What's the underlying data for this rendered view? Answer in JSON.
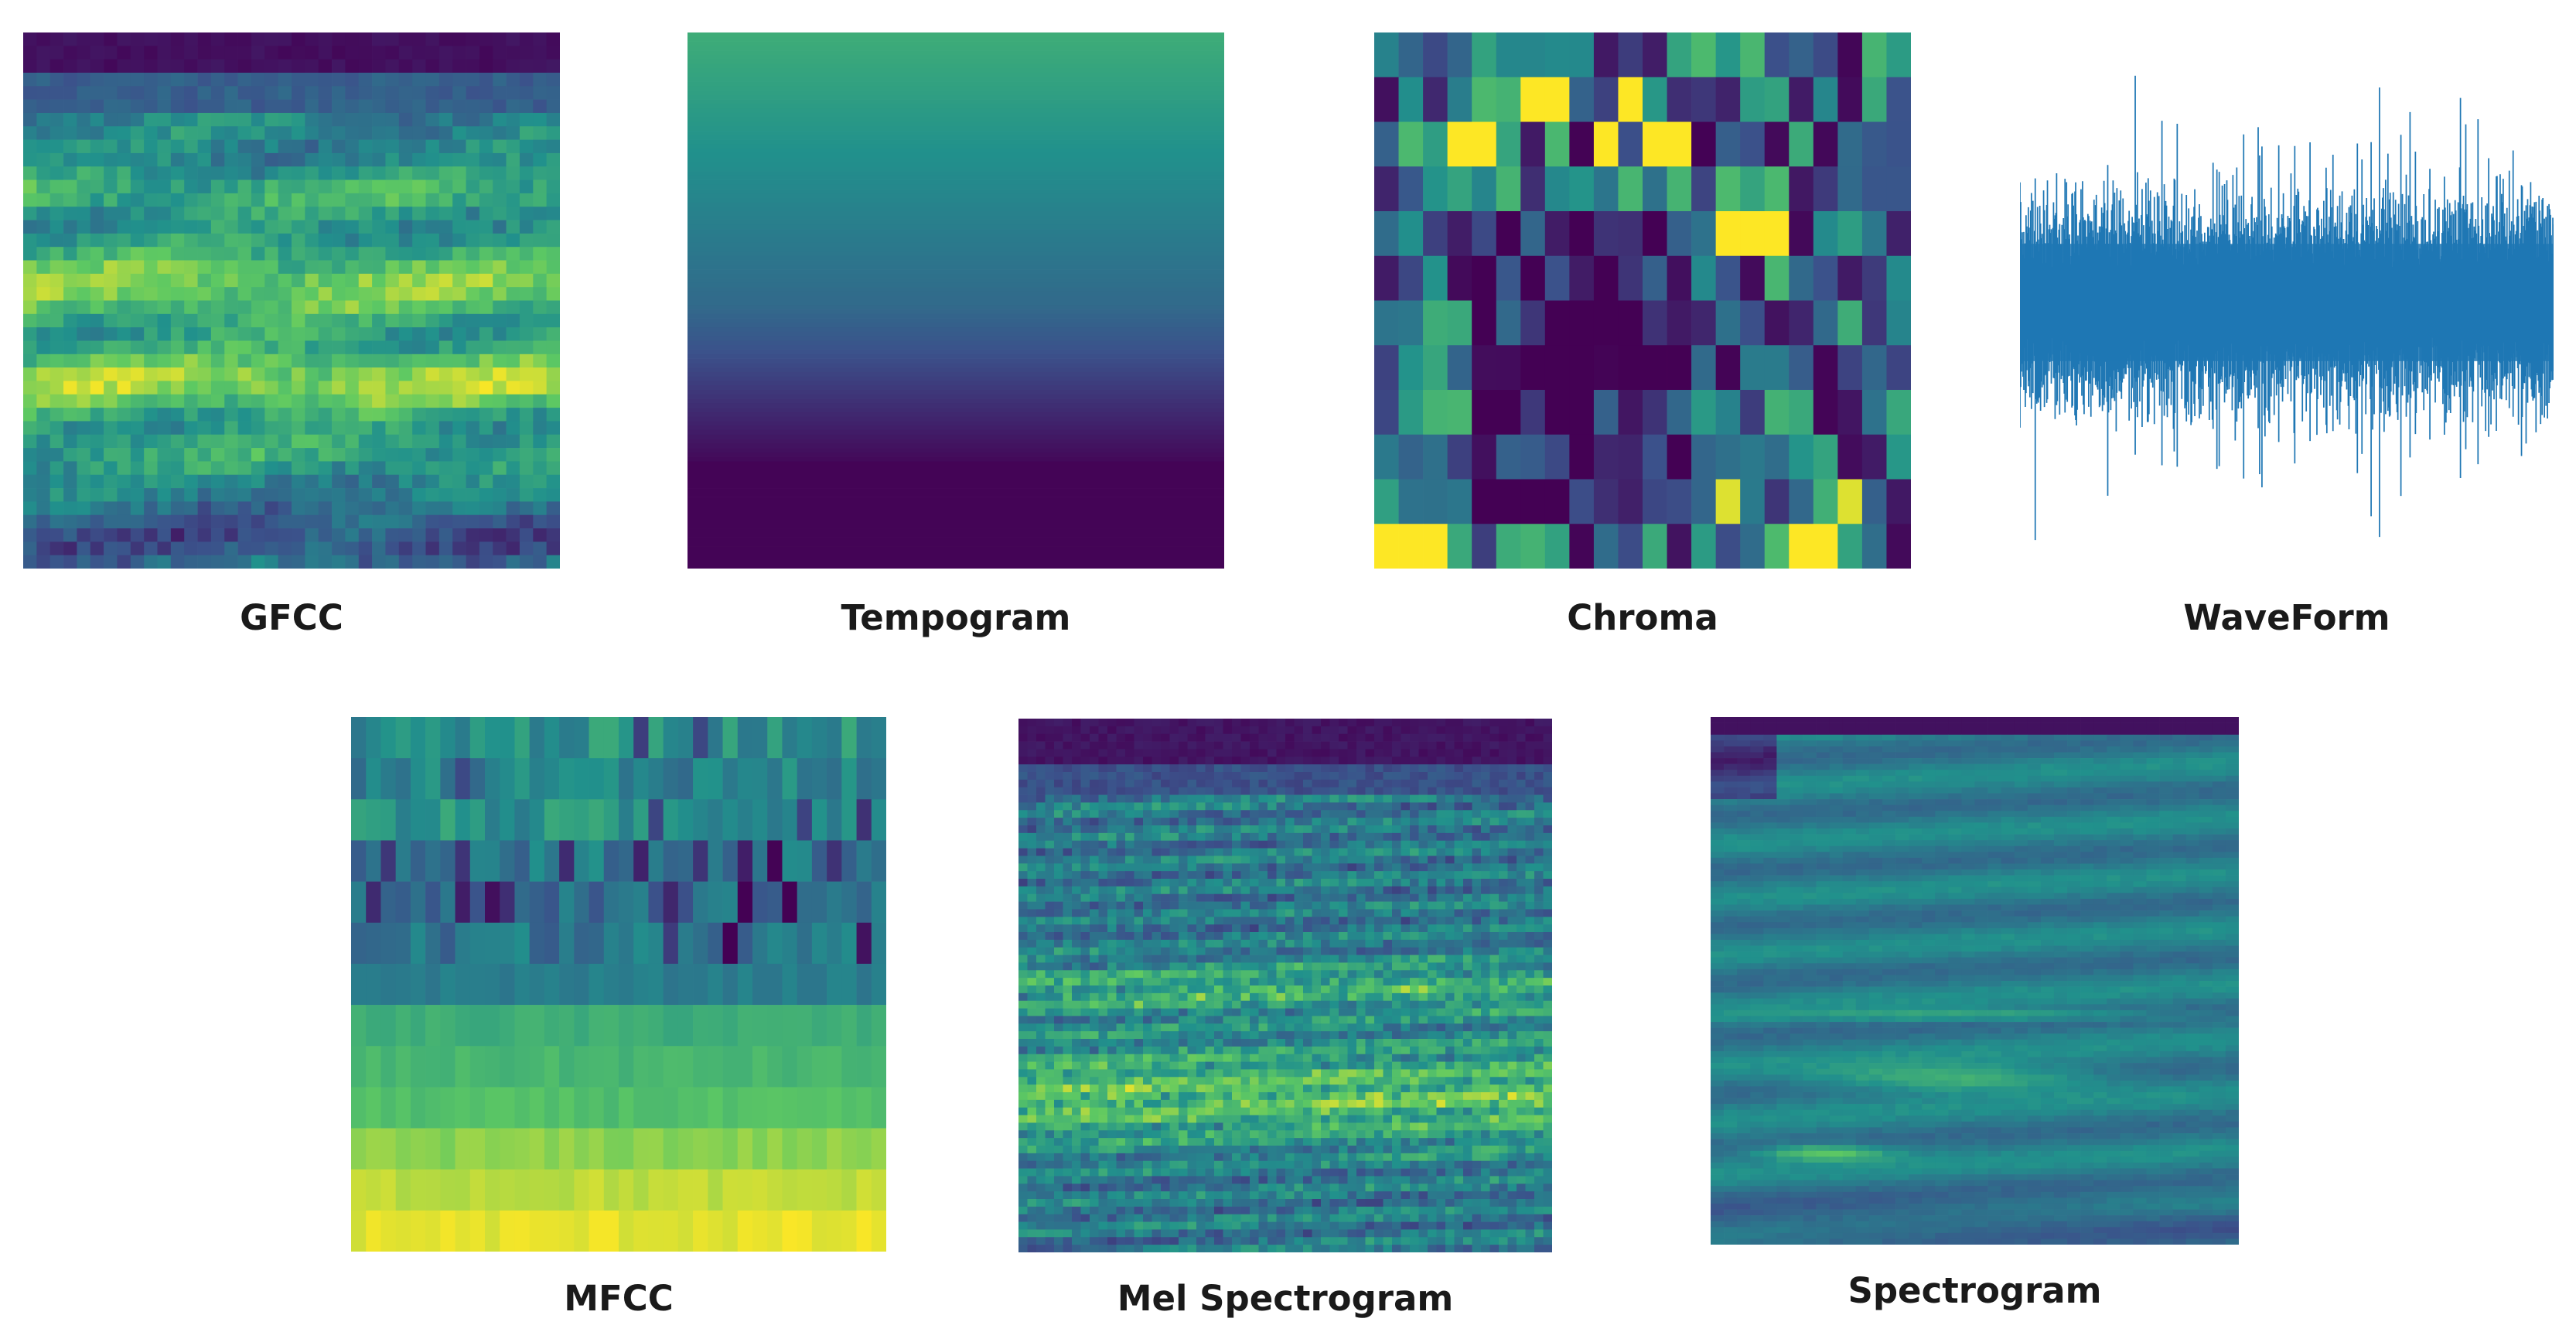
{
  "palette": [
    "#440154",
    "#3b528b",
    "#21918c",
    "#5ec962",
    "#fde725"
  ],
  "waveform_color": "#1f77b4",
  "panels": [
    {
      "id": "gfcc",
      "label": "GFCC",
      "kind": "gfcc"
    },
    {
      "id": "tempogram",
      "label": "Tempogram",
      "kind": "tempogram"
    },
    {
      "id": "chroma",
      "label": "Chroma",
      "kind": "chroma"
    },
    {
      "id": "waveform",
      "label": "WaveForm",
      "kind": "waveform"
    },
    {
      "id": "mfcc",
      "label": "MFCC",
      "kind": "mfcc"
    },
    {
      "id": "mel",
      "label": "Mel Spectrogram",
      "kind": "mel"
    },
    {
      "id": "spectrogram",
      "label": "Spectrogram",
      "kind": "spectrogram"
    }
  ]
}
